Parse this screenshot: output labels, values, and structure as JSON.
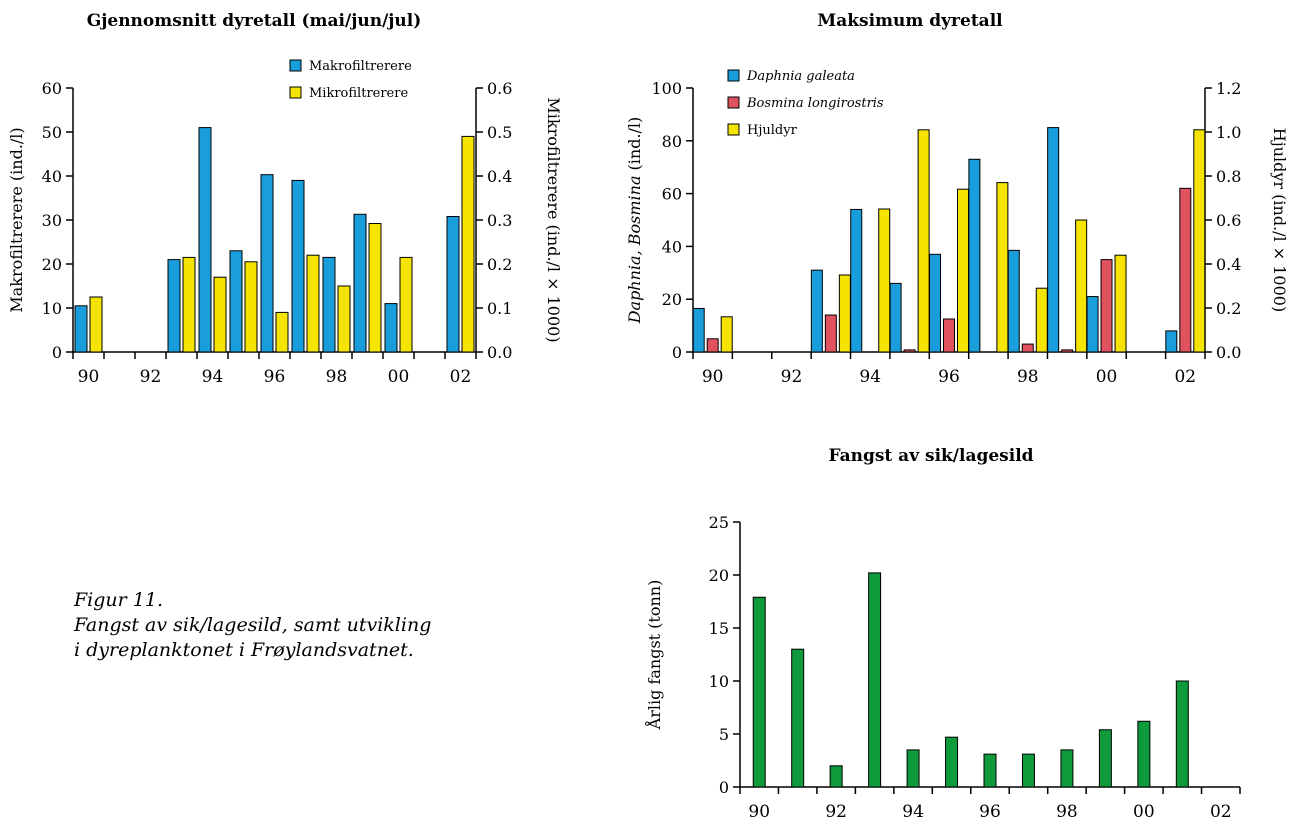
{
  "figure": {
    "caption_line1": "Figur 11.",
    "caption_line2": "Fangst av sik/lagesild, samt utvikling",
    "caption_line3": "i dyreplanktonet i Frøylandsvatnet."
  },
  "colors": {
    "blue": "#1a9edb",
    "yellow": "#f5e400",
    "red": "#e0535e",
    "green": "#0f9a3c"
  },
  "chart_data": [
    {
      "type": "bar",
      "title": "Gjennomsnitt dyretall (mai/jun/jul)",
      "ylabel": "Makrofiltrerere (ind./l)",
      "ylabel2": "Mikrofiltrerere (ind./l × 1000)",
      "ylim": [
        0,
        60
      ],
      "ylim2": [
        0,
        0.6
      ],
      "yticks": [
        "0",
        "10",
        "20",
        "30",
        "40",
        "50",
        "60"
      ],
      "yticks2": [
        "0.0",
        "0.1",
        "0.2",
        "0.3",
        "0.4",
        "0.5",
        "0.6"
      ],
      "categories": [
        "90",
        "91",
        "92",
        "93",
        "94",
        "95",
        "96",
        "97",
        "98",
        "99",
        "00",
        "01",
        "02"
      ],
      "xtick_labels": [
        "90",
        "92",
        "94",
        "96",
        "98",
        "00",
        "02"
      ],
      "legend_position": "top-right",
      "series": [
        {
          "name": "Makrofiltrerere",
          "axis": "left",
          "color": "#1a9edb",
          "values": [
            10.5,
            null,
            null,
            21,
            51,
            23,
            40.3,
            39,
            21.5,
            31.3,
            11,
            null,
            30.8
          ]
        },
        {
          "name": "Mikrofiltrerere",
          "axis": "right",
          "color": "#f5e400",
          "values": [
            0.125,
            null,
            null,
            0.215,
            0.17,
            0.205,
            0.09,
            0.22,
            0.15,
            0.292,
            0.215,
            null,
            0.49
          ]
        }
      ]
    },
    {
      "type": "bar",
      "title": "Maksimum dyretall",
      "ylabel_italic": "Daphnia, Bosmina",
      "ylabel_rest": " (ind./l)",
      "ylabel2": "Hjuldyr (ind./l × 1000)",
      "ylim": [
        0,
        100
      ],
      "ylim2": [
        0,
        1.2
      ],
      "yticks": [
        "0",
        "20",
        "40",
        "60",
        "80",
        "100"
      ],
      "yticks2": [
        "0.0",
        "0.2",
        "0.4",
        "0.6",
        "0.8",
        "1.0",
        "1.2"
      ],
      "categories": [
        "90",
        "91",
        "92",
        "93",
        "94",
        "95",
        "96",
        "97",
        "98",
        "99",
        "00",
        "01",
        "02"
      ],
      "xtick_labels": [
        "90",
        "92",
        "94",
        "96",
        "98",
        "00",
        "02"
      ],
      "legend_position": "top-left",
      "series": [
        {
          "name": "Daphnia galeata",
          "italic": true,
          "axis": "left",
          "color": "#1a9edb",
          "values": [
            16.5,
            null,
            null,
            31,
            54,
            26,
            37,
            73,
            38.5,
            85,
            21,
            null,
            8
          ]
        },
        {
          "name": "Bosmina longirostris",
          "italic": true,
          "axis": "left",
          "color": "#e0535e",
          "values": [
            5,
            null,
            null,
            14,
            null,
            0.8,
            12.5,
            null,
            3,
            0.8,
            35,
            null,
            62
          ]
        },
        {
          "name": "Hjuldyr",
          "italic": false,
          "axis": "right",
          "color": "#f5e400",
          "values": [
            0.16,
            null,
            null,
            0.35,
            0.65,
            1.01,
            0.74,
            0.77,
            0.29,
            0.6,
            0.44,
            null,
            1.01
          ]
        }
      ]
    },
    {
      "type": "bar",
      "title": "Fangst av sik/lagesild",
      "ylabel": "Årlig fangst (tonn)",
      "ylim": [
        0,
        25
      ],
      "yticks": [
        "0",
        "5",
        "10",
        "15",
        "20",
        "25"
      ],
      "categories": [
        "90",
        "91",
        "92",
        "93",
        "94",
        "95",
        "96",
        "97",
        "98",
        "99",
        "00",
        "01",
        "02"
      ],
      "xtick_labels": [
        "90",
        "92",
        "94",
        "96",
        "98",
        "00",
        "02"
      ],
      "series": [
        {
          "color": "#0f9a3c",
          "values": [
            17.9,
            13,
            2,
            20.2,
            3.5,
            4.7,
            3.1,
            3.1,
            3.5,
            5.4,
            6.2,
            10,
            null
          ]
        }
      ]
    }
  ]
}
